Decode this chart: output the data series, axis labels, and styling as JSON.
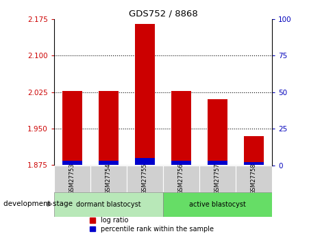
{
  "title": "GDS752 / 8868",
  "categories": [
    "GSM27753",
    "GSM27754",
    "GSM27755",
    "GSM27756",
    "GSM27757",
    "GSM27758"
  ],
  "baseline": 1.875,
  "log_ratio_tops": [
    2.027,
    2.027,
    2.165,
    2.027,
    2.01,
    1.935
  ],
  "percentile_rank_values": [
    3,
    3,
    5,
    3,
    3,
    2
  ],
  "ylim_left": [
    1.875,
    2.175
  ],
  "yticks_left": [
    1.875,
    1.95,
    2.025,
    2.1,
    2.175
  ],
  "ylim_right": [
    0,
    100
  ],
  "yticks_right": [
    0,
    25,
    50,
    75,
    100
  ],
  "bar_color_red": "#cc0000",
  "bar_color_blue": "#0000cc",
  "left_tick_color": "#cc0000",
  "right_tick_color": "#0000bb",
  "group1_label": "dormant blastocyst",
  "group2_label": "active blastocyst",
  "group1_indices": [
    0,
    1,
    2
  ],
  "group2_indices": [
    3,
    4,
    5
  ],
  "group_bg1": "#b8e8b8",
  "group_bg2": "#66dd66",
  "bottom_label": "development stage",
  "legend_red_label": "log ratio",
  "legend_blue_label": "percentile rank within the sample",
  "bar_width": 0.55,
  "dotted_line_color": "#000000",
  "plot_bg": "#ffffff",
  "xticklabel_bg": "#d0d0d0",
  "fig_bg": "#ffffff",
  "gridline_yticks": [
    1.95,
    2.025,
    2.1
  ],
  "spine_color": "#000000"
}
